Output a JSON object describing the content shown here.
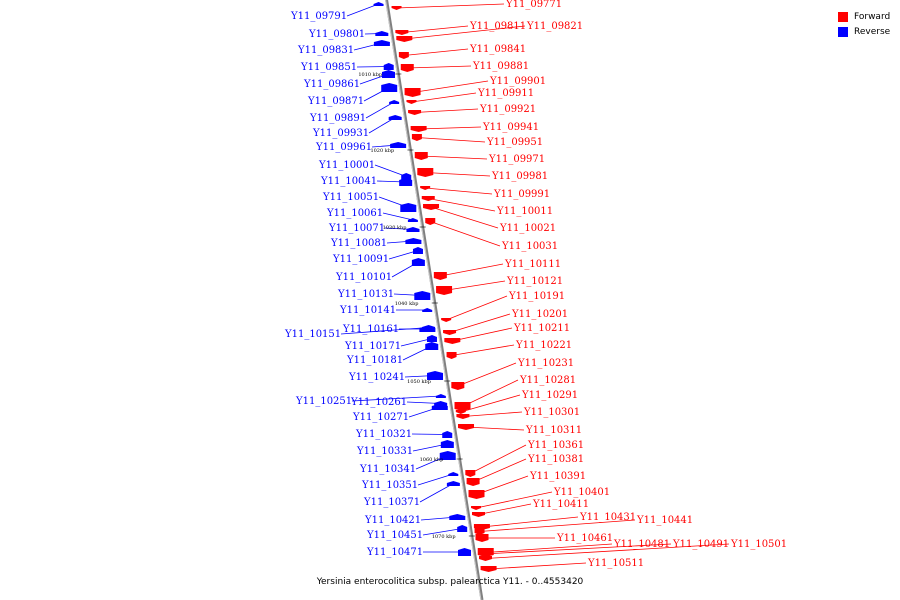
{
  "caption": "Yersinia enterocolitica subsp. palearctica Y11. - 0..4553420",
  "legend": [
    {
      "label": "Forward",
      "color": "#ff0000"
    },
    {
      "label": "Reverse",
      "color": "#0000ff"
    }
  ],
  "colors": {
    "forward": "#ff0000",
    "reverse": "#0000ff",
    "axis": "#808080"
  },
  "ticks": [
    "1010 kbp",
    "1020 kbp",
    "1030 kbp",
    "1040 kbp",
    "1050 kbp",
    "1060 kbp",
    "1070 kbp"
  ],
  "forward_genes": [
    "Y11_09771",
    "Y11_09811",
    "Y11_09821",
    "Y11_09841",
    "Y11_09881",
    "Y11_09901",
    "Y11_09911",
    "Y11_09921",
    "Y11_09941",
    "Y11_09951",
    "Y11_09971",
    "Y11_09981",
    "Y11_09991",
    "Y11_10011",
    "Y11_10021",
    "Y11_10031",
    "Y11_10111",
    "Y11_10121",
    "Y11_10191",
    "Y11_10201",
    "Y11_10211",
    "Y11_10221",
    "Y11_10231",
    "Y11_10281",
    "Y11_10291",
    "Y11_10301",
    "Y11_10311",
    "Y11_10361",
    "Y11_10381",
    "Y11_10391",
    "Y11_10401",
    "Y11_10411",
    "Y11_10431",
    "Y11_10441",
    "Y11_10461",
    "Y11_10481",
    "Y11_10491",
    "Y11_10501",
    "Y11_10511"
  ],
  "reverse_genes": [
    "Y11_09791",
    "Y11_09801",
    "Y11_09831",
    "Y11_09851",
    "Y11_09861",
    "Y11_09871",
    "Y11_09891",
    "Y11_09931",
    "Y11_09961",
    "Y11_10001",
    "Y11_10041",
    "Y11_10051",
    "Y11_10061",
    "Y11_10071",
    "Y11_10081",
    "Y11_10091",
    "Y11_10101",
    "Y11_10131",
    "Y11_10141",
    "Y11_10151",
    "Y11_10161",
    "Y11_10171",
    "Y11_10181",
    "Y11_10241",
    "Y11_10251",
    "Y11_10261",
    "Y11_10271",
    "Y11_10321",
    "Y11_10331",
    "Y11_10341",
    "Y11_10351",
    "Y11_10371",
    "Y11_10421",
    "Y11_10451",
    "Y11_10471"
  ]
}
